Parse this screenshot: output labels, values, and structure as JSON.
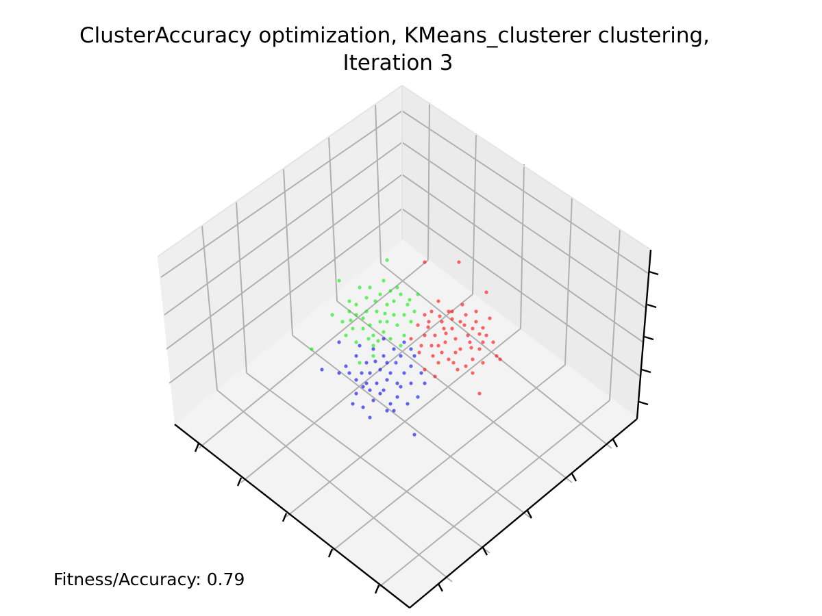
{
  "chart_data": {
    "type": "scatter",
    "projection": "3d",
    "title": "ClusterAccuracy optimization, KMeans_clusterer clustering,",
    "subtitle": "Iteration 3",
    "xlabel": "",
    "ylabel": "",
    "zlabel": "",
    "grid": true,
    "legend": "none",
    "annotation": "Fitness/Accuracy: 0.79",
    "series": [
      {
        "color": "#ff0000",
        "points": [
          [
            705,
            479
          ],
          [
            651,
            487
          ],
          [
            630,
            455
          ],
          [
            686,
            500
          ],
          [
            672,
            510
          ],
          [
            626,
            470
          ],
          [
            695,
            470
          ],
          [
            660,
            466
          ],
          [
            640,
            505
          ],
          [
            655,
            525
          ],
          [
            620,
            490
          ],
          [
            710,
            490
          ],
          [
            690,
            525
          ],
          [
            645,
            470
          ],
          [
            665,
            495
          ],
          [
            632,
            520
          ],
          [
            700,
            510
          ],
          [
            680,
            460
          ],
          [
            615,
            505
          ],
          [
            668,
            540
          ],
          [
            720,
            500
          ],
          [
            640,
            440
          ],
          [
            610,
            475
          ],
          [
            683,
            490
          ],
          [
            650,
            500
          ],
          [
            695,
            455
          ],
          [
            725,
            520
          ],
          [
            660,
            480
          ],
          [
            635,
            490
          ],
          [
            690,
            480
          ],
          [
            675,
            445
          ],
          [
            655,
            455
          ],
          [
            705,
            530
          ],
          [
            620,
            460
          ],
          [
            640,
            530
          ],
          [
            600,
            495
          ],
          [
            715,
            465
          ],
          [
            680,
            535
          ],
          [
            620,
            540
          ],
          [
            700,
            575
          ],
          [
            730,
            525
          ],
          [
            670,
            383
          ],
          [
            620,
            383
          ],
          [
            710,
            427
          ],
          [
            635,
            550
          ],
          [
            665,
            515
          ],
          [
            690,
            545
          ],
          [
            645,
            515
          ],
          [
            612,
            515
          ],
          [
            705,
            500
          ],
          [
            678,
            475
          ],
          [
            660,
            455
          ],
          [
            630,
            505
          ],
          [
            648,
            480
          ],
          [
            700,
            488
          ],
          [
            688,
            508
          ],
          [
            662,
            530
          ],
          [
            625,
            478
          ],
          [
            642,
            462
          ],
          [
            672,
            470
          ]
        ]
      },
      {
        "color": "#00ee00",
        "points": [
          [
            540,
            420
          ],
          [
            565,
            445
          ],
          [
            520,
            460
          ],
          [
            555,
            470
          ],
          [
            585,
            430
          ],
          [
            545,
            490
          ],
          [
            510,
            440
          ],
          [
            575,
            460
          ],
          [
            530,
            480
          ],
          [
            560,
            410
          ],
          [
            595,
            445
          ],
          [
            520,
            500
          ],
          [
            550,
            455
          ],
          [
            580,
            475
          ],
          [
            535,
            435
          ],
          [
            565,
            380
          ],
          [
            525,
            420
          ],
          [
            500,
            470
          ],
          [
            590,
            460
          ],
          [
            545,
            505
          ],
          [
            515,
            480
          ],
          [
            570,
            495
          ],
          [
            555,
            430
          ],
          [
            495,
            410
          ],
          [
            600,
            470
          ],
          [
            535,
            455
          ],
          [
            485,
            460
          ],
          [
            580,
            420
          ],
          [
            560,
            485
          ],
          [
            545,
            520
          ],
          [
            455,
            510
          ],
          [
            525,
            530
          ],
          [
            610,
            430
          ],
          [
            510,
            455
          ],
          [
            575,
            440
          ],
          [
            548,
            440
          ],
          [
            530,
            465
          ],
          [
            562,
            458
          ],
          [
            540,
            475
          ],
          [
            590,
            490
          ],
          [
            605,
            455
          ],
          [
            520,
            445
          ],
          [
            570,
            425
          ],
          [
            552,
            498
          ],
          [
            505,
            490
          ],
          [
            585,
            505
          ],
          [
            538,
            495
          ],
          [
            565,
            470
          ],
          [
            598,
            438
          ],
          [
            512,
            468
          ]
        ]
      },
      {
        "color": "#0000ee",
        "points": [
          [
            565,
            530
          ],
          [
            540,
            545
          ],
          [
            520,
            520
          ],
          [
            580,
            560
          ],
          [
            555,
            575
          ],
          [
            600,
            535
          ],
          [
            530,
            565
          ],
          [
            575,
            510
          ],
          [
            510,
            545
          ],
          [
            590,
            545
          ],
          [
            545,
            585
          ],
          [
            520,
            575
          ],
          [
            600,
            560
          ],
          [
            560,
            520
          ],
          [
            535,
            530
          ],
          [
            570,
            590
          ],
          [
            585,
            520
          ],
          [
            505,
            535
          ],
          [
            550,
            560
          ],
          [
            615,
            545
          ],
          [
            530,
            595
          ],
          [
            565,
            600
          ],
          [
            495,
            545
          ],
          [
            605,
            520
          ],
          [
            545,
            510
          ],
          [
            580,
            580
          ],
          [
            520,
            555
          ],
          [
            470,
            540
          ],
          [
            610,
            580
          ],
          [
            590,
            500
          ],
          [
            555,
            540
          ],
          [
            540,
            610
          ],
          [
            575,
            600
          ],
          [
            605,
            635
          ],
          [
            495,
            500
          ],
          [
            620,
            560
          ],
          [
            560,
            495
          ],
          [
            525,
            505
          ],
          [
            585,
            565
          ],
          [
            548,
            528
          ],
          [
            570,
            545
          ],
          [
            535,
            560
          ],
          [
            595,
            590
          ],
          [
            515,
            590
          ],
          [
            560,
            570
          ],
          [
            578,
            530
          ],
          [
            540,
            570
          ],
          [
            600,
            510
          ],
          [
            528,
            545
          ],
          [
            565,
            555
          ]
        ]
      }
    ]
  }
}
